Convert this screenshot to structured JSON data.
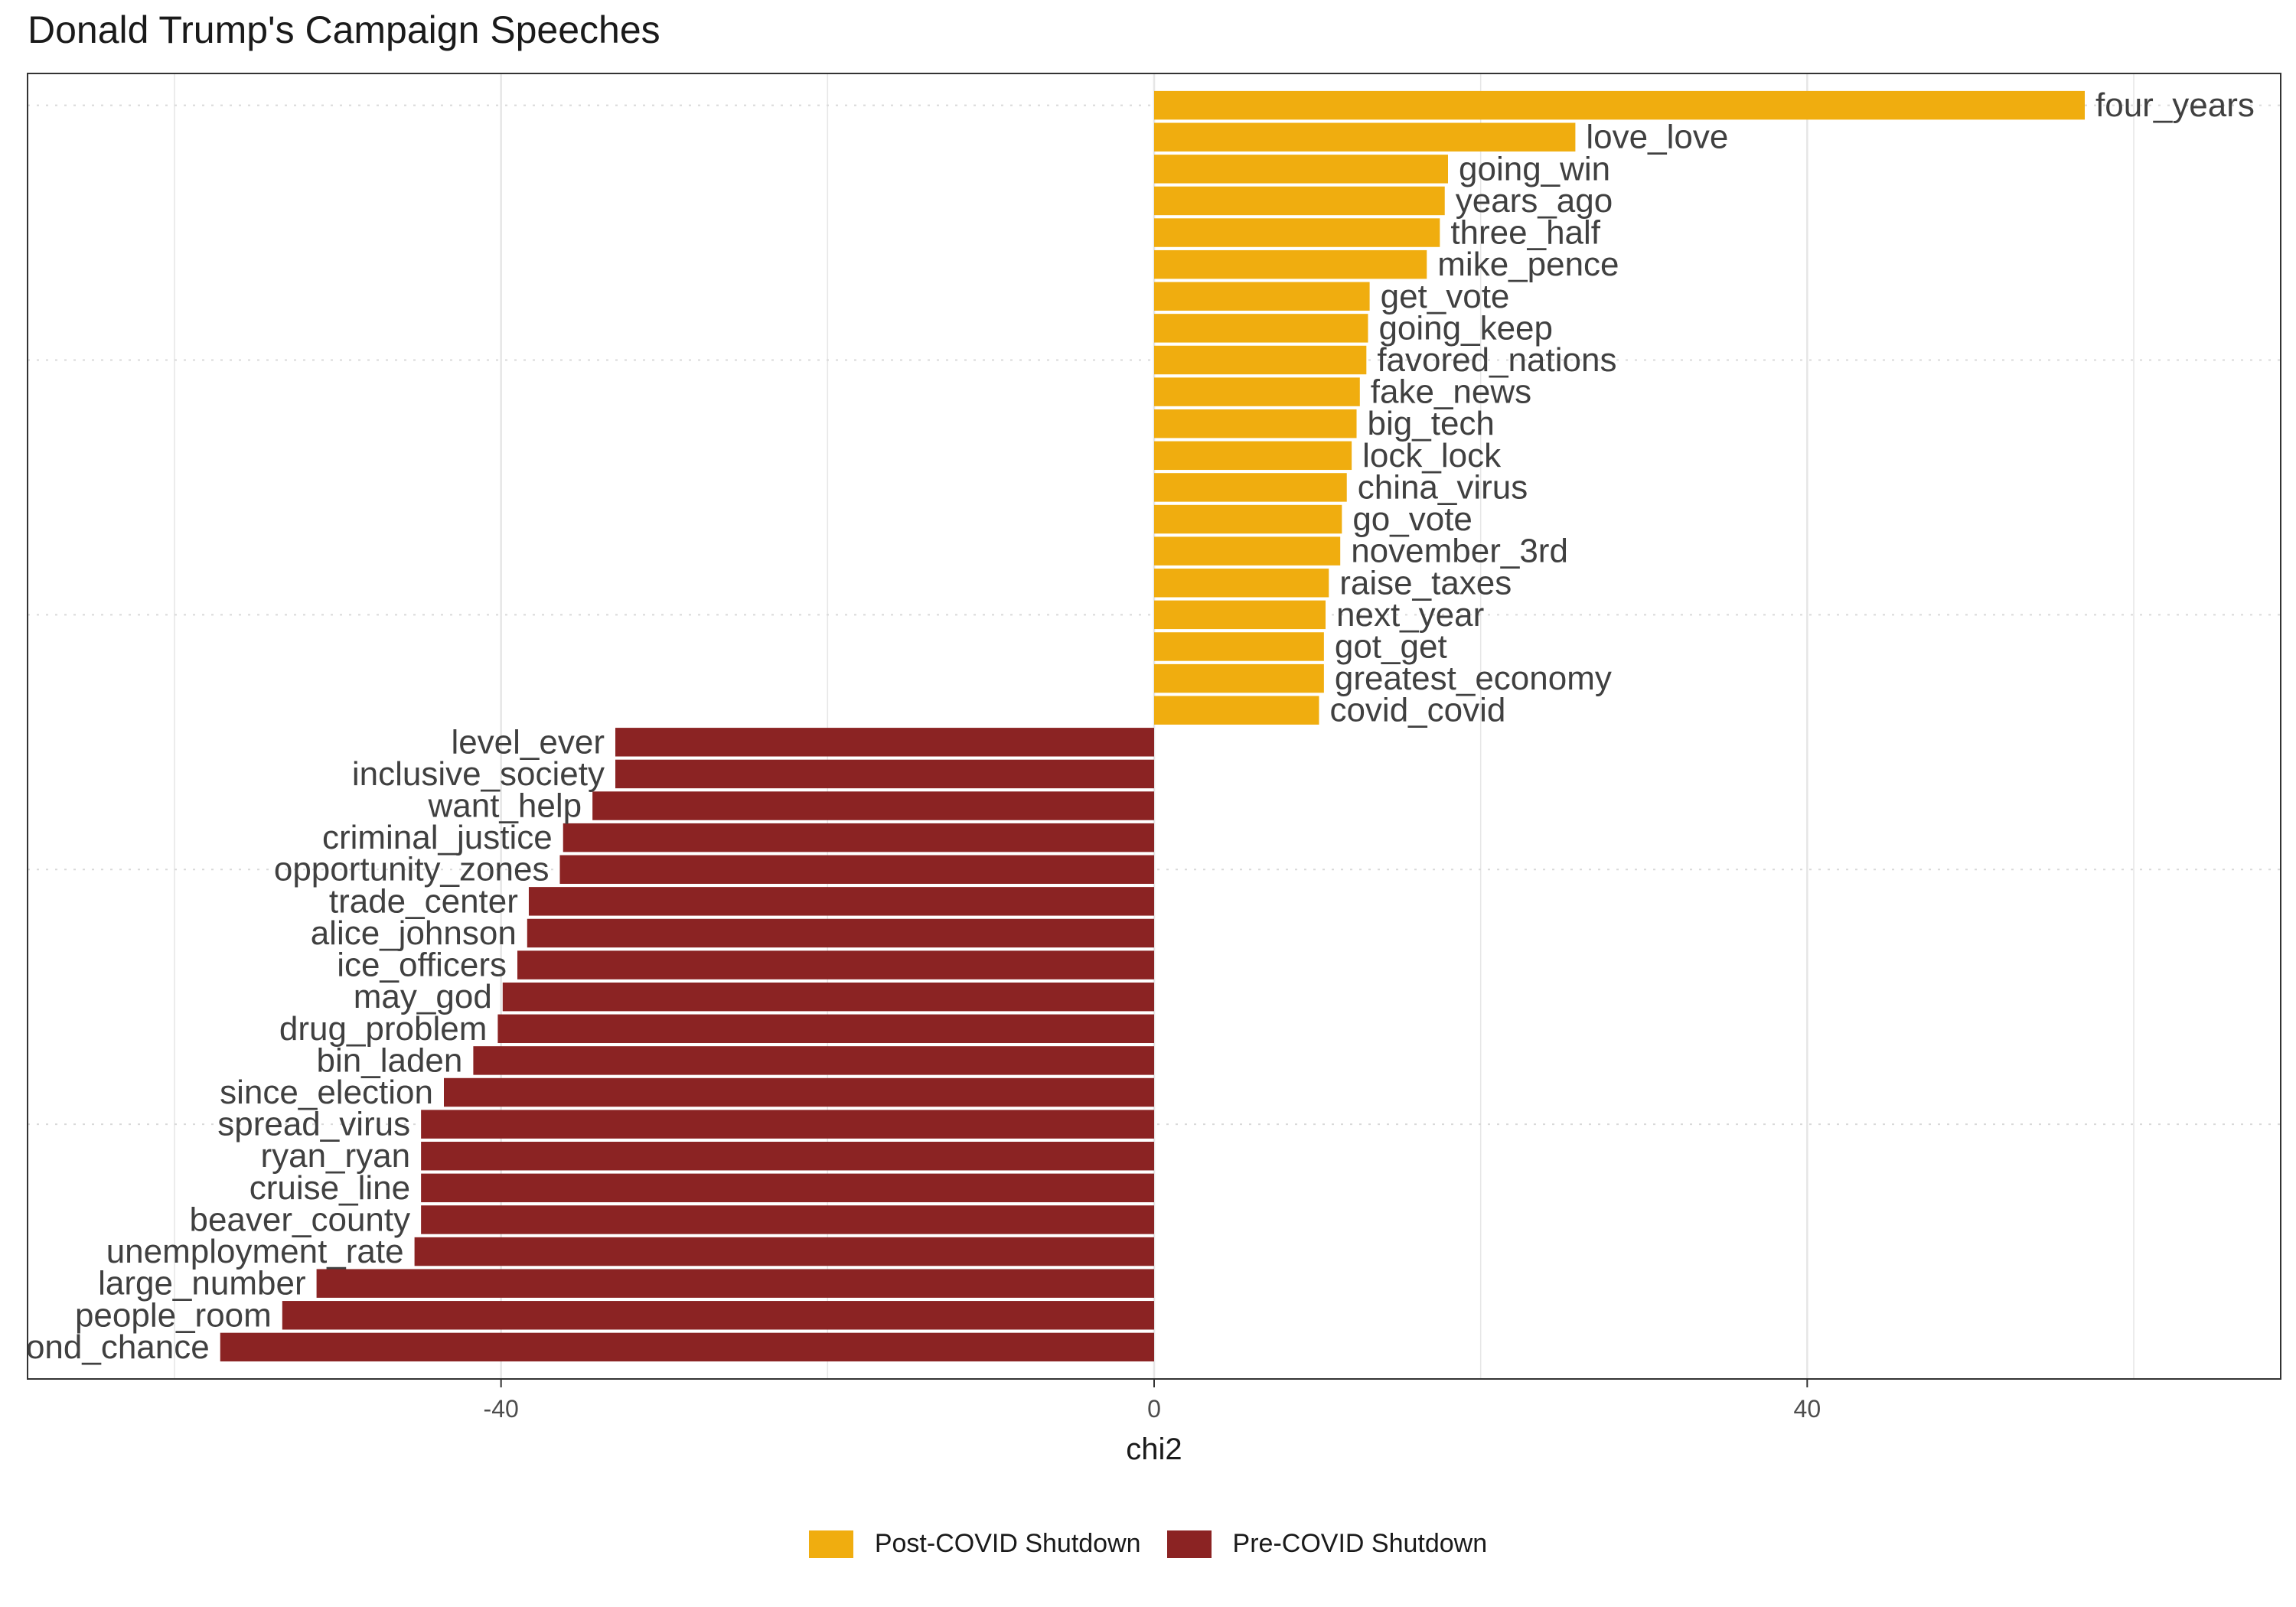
{
  "chart_data": {
    "type": "bar",
    "orientation": "horizontal",
    "title": "Donald Trump's Campaign Speeches",
    "xlabel": "chi2",
    "ylabel": "",
    "xlim": [
      -69,
      69
    ],
    "xticks": [
      -40,
      0,
      40
    ],
    "xtick_labels": [
      "-40",
      "0",
      "40"
    ],
    "grid": true,
    "legend_position": "bottom",
    "colors": {
      "post": "#F0AD0F",
      "pre": "#8B2323"
    },
    "legend": [
      {
        "label": "Post-COVID Shutdown",
        "color": "#F0AD0F"
      },
      {
        "label": "Pre-COVID Shutdown",
        "color": "#8B2323"
      }
    ],
    "bars": [
      {
        "label": "four_years",
        "value": 57.0,
        "group": "post"
      },
      {
        "label": "love_love",
        "value": 25.8,
        "group": "post"
      },
      {
        "label": "going_win",
        "value": 18.0,
        "group": "post"
      },
      {
        "label": "years_ago",
        "value": 17.8,
        "group": "post"
      },
      {
        "label": "three_half",
        "value": 17.5,
        "group": "post"
      },
      {
        "label": "mike_pence",
        "value": 16.7,
        "group": "post"
      },
      {
        "label": "get_vote",
        "value": 13.2,
        "group": "post"
      },
      {
        "label": "going_keep",
        "value": 13.1,
        "group": "post"
      },
      {
        "label": "favored_nations",
        "value": 13.0,
        "group": "post"
      },
      {
        "label": "fake_news",
        "value": 12.6,
        "group": "post"
      },
      {
        "label": "big_tech",
        "value": 12.4,
        "group": "post"
      },
      {
        "label": "lock_lock",
        "value": 12.1,
        "group": "post"
      },
      {
        "label": "china_virus",
        "value": 11.8,
        "group": "post"
      },
      {
        "label": "go_vote",
        "value": 11.5,
        "group": "post"
      },
      {
        "label": "november_3rd",
        "value": 11.4,
        "group": "post"
      },
      {
        "label": "raise_taxes",
        "value": 10.7,
        "group": "post"
      },
      {
        "label": "next_year",
        "value": 10.5,
        "group": "post"
      },
      {
        "label": "got_get",
        "value": 10.4,
        "group": "post"
      },
      {
        "label": "greatest_economy",
        "value": 10.4,
        "group": "post"
      },
      {
        "label": "covid_covid",
        "value": 10.1,
        "group": "post"
      },
      {
        "label": "level_ever",
        "value": -33.0,
        "group": "pre"
      },
      {
        "label": "inclusive_society",
        "value": -33.0,
        "group": "pre"
      },
      {
        "label": "want_help",
        "value": -34.4,
        "group": "pre"
      },
      {
        "label": "criminal_justice",
        "value": -36.2,
        "group": "pre"
      },
      {
        "label": "opportunity_zones",
        "value": -36.4,
        "group": "pre"
      },
      {
        "label": "trade_center",
        "value": -38.3,
        "group": "pre"
      },
      {
        "label": "alice_johnson",
        "value": -38.4,
        "group": "pre"
      },
      {
        "label": "ice_officers",
        "value": -39.0,
        "group": "pre"
      },
      {
        "label": "may_god",
        "value": -39.9,
        "group": "pre"
      },
      {
        "label": "drug_problem",
        "value": -40.2,
        "group": "pre"
      },
      {
        "label": "bin_laden",
        "value": -41.7,
        "group": "pre"
      },
      {
        "label": "since_election",
        "value": -43.5,
        "group": "pre"
      },
      {
        "label": "spread_virus",
        "value": -44.9,
        "group": "pre"
      },
      {
        "label": "ryan_ryan",
        "value": -44.9,
        "group": "pre"
      },
      {
        "label": "cruise_line",
        "value": -44.9,
        "group": "pre"
      },
      {
        "label": "beaver_county",
        "value": -44.9,
        "group": "pre"
      },
      {
        "label": "unemployment_rate",
        "value": -45.3,
        "group": "pre"
      },
      {
        "label": "large_number",
        "value": -51.3,
        "group": "pre"
      },
      {
        "label": "people_room",
        "value": -53.4,
        "group": "pre"
      },
      {
        "label": "second_chance",
        "value": -57.2,
        "group": "pre"
      }
    ]
  }
}
